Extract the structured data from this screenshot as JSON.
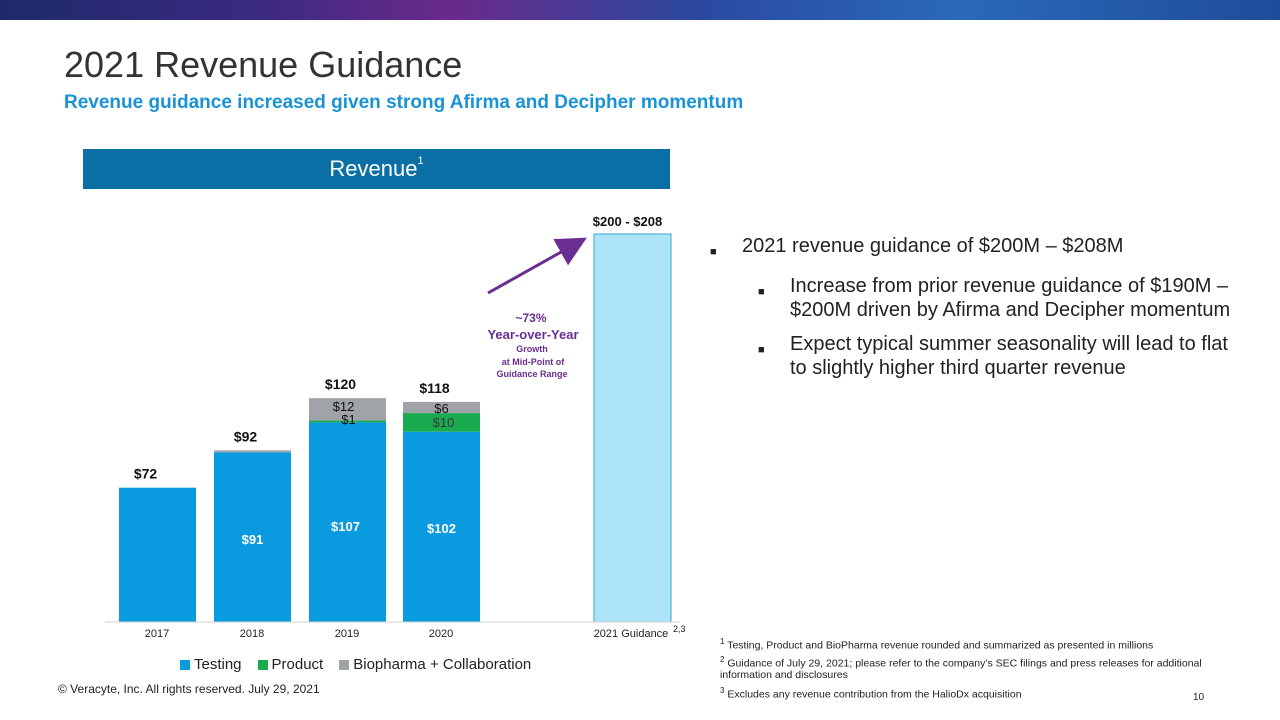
{
  "header": {
    "title": "2021 Revenue Guidance",
    "subtitle": "Revenue guidance increased given strong Afirma and Decipher momentum"
  },
  "panel": {
    "label": "Revenue",
    "label_sup": "1"
  },
  "colors": {
    "testing": "#0a9ae0",
    "product": "#1aaa50",
    "biopharma": "#a0a3a8",
    "guidance": "#aee4f8",
    "arrow": "#6a2d91",
    "accent": "#1a93d6"
  },
  "chart_data": {
    "type": "bar",
    "stacked": true,
    "categories": [
      "2017",
      "2018",
      "2019",
      "2020",
      "2021 Guidance"
    ],
    "category_sup": [
      "",
      "",
      "",
      "",
      "2,3"
    ],
    "series": [
      {
        "name": "Testing",
        "values": [
          72,
          91,
          107,
          102,
          null
        ]
      },
      {
        "name": "Product",
        "values": [
          0,
          0,
          1,
          10,
          null
        ]
      },
      {
        "name": "Biopharma + Collaboration",
        "values": [
          0,
          1,
          12,
          6,
          null
        ]
      }
    ],
    "guidance": {
      "low": 200,
      "high": 208,
      "label": "$200 - $208"
    },
    "totals_labels": [
      "$72",
      "$92",
      "$120",
      "$118"
    ],
    "segment_labels": [
      [
        "",
        "",
        ""
      ],
      [
        "$91",
        "",
        ""
      ],
      [
        "$107",
        "$1",
        "$12"
      ],
      [
        "$102",
        "$10",
        "$6"
      ]
    ],
    "annotation": {
      "pct": "~73%",
      "yoy": "Year-over-Year",
      "growth": "Growth",
      "mid": "at Mid-Point of",
      "range": "Guidance Range"
    },
    "ylim": [
      0,
      208
    ],
    "legend_position": "bottom"
  },
  "bullets": {
    "main": "2021 revenue guidance of $200M – $208M",
    "sub": [
      "Increase from prior revenue guidance of $190M – $200M driven by Afirma and Decipher momentum",
      "Expect typical summer seasonality will lead to flat to slightly higher third quarter revenue"
    ],
    "marker": "■"
  },
  "legend": {
    "testing": "Testing",
    "product": "Product",
    "biopharma": "Biopharma + Collaboration"
  },
  "footnotes": {
    "n1_num": "1",
    "n1": "Testing, Product and BioPharma revenue rounded and summarized as presented in millions",
    "n2_num": "2",
    "n2": "Guidance of July 29, 2021; please refer to the company’s SEC filings and press releases for additional information and disclosures",
    "n3_num": "3",
    "n3": "Excludes any revenue contribution from the HalioDx acquisition"
  },
  "footer": {
    "copyright": "© Veracyte, Inc.  All rights reserved. July 29, 2021",
    "page": "10"
  }
}
